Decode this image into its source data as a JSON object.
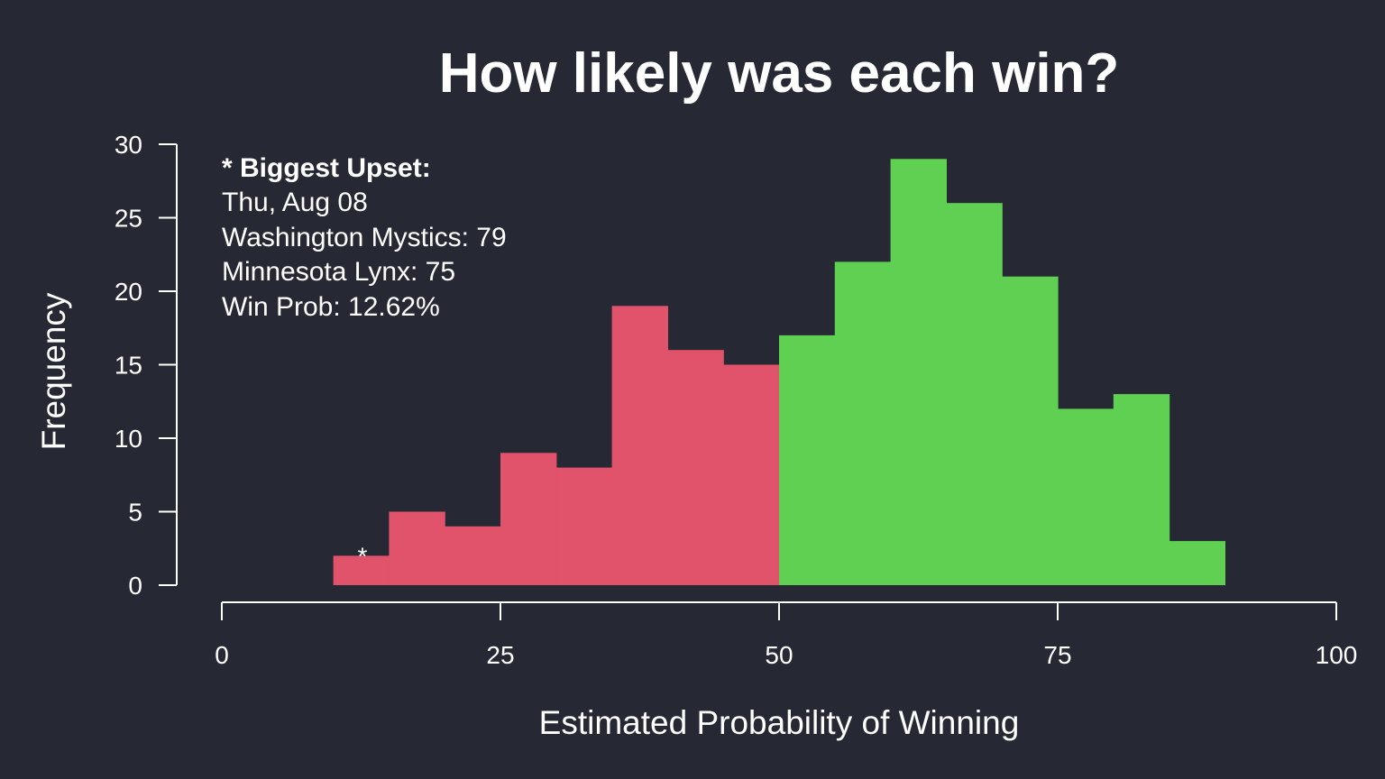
{
  "chart_data": {
    "type": "bar",
    "title": "How likely was each win?",
    "xlabel": "Estimated Probability of Winning",
    "ylabel": "Frequency",
    "xlim": [
      0,
      100
    ],
    "ylim": [
      0,
      30
    ],
    "x_ticks": [
      "0",
      "25",
      "50",
      "75",
      "100"
    ],
    "y_ticks": [
      "0",
      "5",
      "10",
      "15",
      "20",
      "25",
      "30"
    ],
    "bin_width": 5,
    "bins": [
      {
        "start": 10,
        "end": 15,
        "value": 2
      },
      {
        "start": 15,
        "end": 20,
        "value": 5
      },
      {
        "start": 20,
        "end": 25,
        "value": 4
      },
      {
        "start": 25,
        "end": 30,
        "value": 9
      },
      {
        "start": 30,
        "end": 35,
        "value": 8
      },
      {
        "start": 35,
        "end": 40,
        "value": 19
      },
      {
        "start": 40,
        "end": 45,
        "value": 16
      },
      {
        "start": 45,
        "end": 50,
        "value": 15
      },
      {
        "start": 50,
        "end": 55,
        "value": 17
      },
      {
        "start": 55,
        "end": 60,
        "value": 22
      },
      {
        "start": 60,
        "end": 65,
        "value": 29
      },
      {
        "start": 65,
        "end": 70,
        "value": 26
      },
      {
        "start": 70,
        "end": 75,
        "value": 21
      },
      {
        "start": 75,
        "end": 80,
        "value": 12
      },
      {
        "start": 80,
        "end": 85,
        "value": 13
      },
      {
        "start": 85,
        "end": 90,
        "value": 3
      }
    ],
    "colors": {
      "below_50": "#e0536b",
      "above_50": "#5fd052",
      "background": "#262833",
      "text": "#ffffff"
    },
    "grid": false,
    "annotation": {
      "marker": "*",
      "x": 12.62,
      "heading": "* Biggest Upset:",
      "lines": [
        "Thu, Aug 08",
        "Washington Mystics: 79",
        "Minnesota Lynx: 75",
        "Win Prob: 12.62%"
      ]
    }
  }
}
